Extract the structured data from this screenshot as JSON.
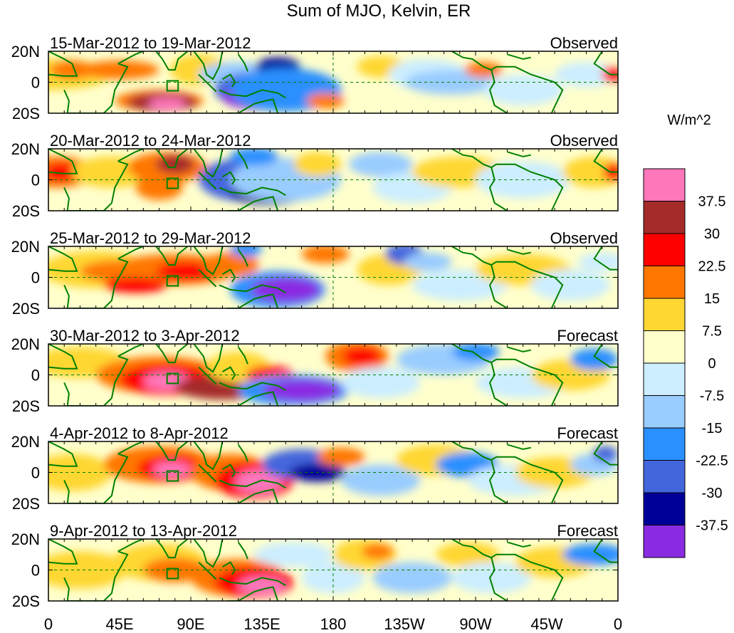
{
  "title": "Sum of MJO, Kelvin, ER",
  "units": "W/m^2",
  "lat_labels": [
    "20N",
    "0",
    "20S"
  ],
  "lon_labels": [
    "0",
    "45E",
    "90E",
    "135E",
    "180",
    "135W",
    "90W",
    "45W",
    "0"
  ],
  "panels": [
    {
      "date_range": "15-Mar-2012 to 19-Mar-2012",
      "status": "Observed"
    },
    {
      "date_range": "20-Mar-2012 to 24-Mar-2012",
      "status": "Observed"
    },
    {
      "date_range": "25-Mar-2012 to 29-Mar-2012",
      "status": "Observed"
    },
    {
      "date_range": "30-Mar-2012 to 3-Apr-2012",
      "status": "Forecast"
    },
    {
      "date_range": "4-Apr-2012 to 8-Apr-2012",
      "status": "Forecast"
    },
    {
      "date_range": "9-Apr-2012 to 13-Apr-2012",
      "status": "Forecast"
    }
  ],
  "colorbar": {
    "labels": [
      "37.5",
      "30",
      "22.5",
      "15",
      "7.5",
      "0",
      "-7.5",
      "-15",
      "-22.5",
      "-30",
      "-37.5"
    ],
    "colors": [
      "#ff77bb",
      "#a52a2a",
      "#ff0000",
      "#ff7700",
      "#ffd733",
      "#ffffcc",
      "#cceeff",
      "#99ccff",
      "#2a90ff",
      "#4466dd",
      "#000099",
      "#8a2be2"
    ]
  },
  "coast_color": "#008000",
  "equator_line_color": "#008000"
}
